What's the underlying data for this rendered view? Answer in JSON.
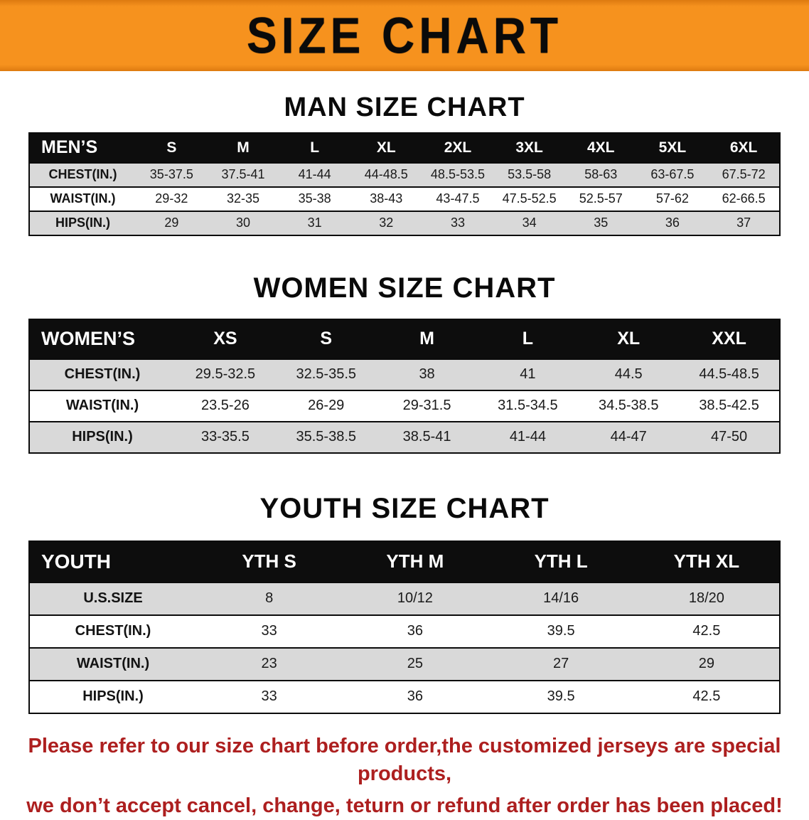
{
  "banner": {
    "title": "SIZE CHART"
  },
  "chart_data": [
    {
      "type": "table",
      "title": "MAN SIZE CHART",
      "columns": [
        "MEN’S",
        "S",
        "M",
        "L",
        "XL",
        "2XL",
        "3XL",
        "4XL",
        "5XL",
        "6XL"
      ],
      "rows": [
        [
          "CHEST(IN.)",
          "35-37.5",
          "37.5-41",
          "41-44",
          "44-48.5",
          "48.5-53.5",
          "53.5-58",
          "58-63",
          "63-67.5",
          "67.5-72"
        ],
        [
          "WAIST(IN.)",
          "29-32",
          "32-35",
          "35-38",
          "38-43",
          "43-47.5",
          "47.5-52.5",
          "52.5-57",
          "57-62",
          "62-66.5"
        ],
        [
          "HIPS(IN.)",
          "29",
          "30",
          "31",
          "32",
          "33",
          "34",
          "35",
          "36",
          "37"
        ]
      ]
    },
    {
      "type": "table",
      "title": "WOMEN SIZE CHART",
      "columns": [
        "WOMEN’S",
        "XS",
        "S",
        "M",
        "L",
        "XL",
        "XXL"
      ],
      "rows": [
        [
          "CHEST(IN.)",
          "29.5-32.5",
          "32.5-35.5",
          "38",
          "41",
          "44.5",
          "44.5-48.5"
        ],
        [
          "WAIST(IN.)",
          "23.5-26",
          "26-29",
          "29-31.5",
          "31.5-34.5",
          "34.5-38.5",
          "38.5-42.5"
        ],
        [
          "HIPS(IN.)",
          "33-35.5",
          "35.5-38.5",
          "38.5-41",
          "41-44",
          "44-47",
          "47-50"
        ]
      ]
    },
    {
      "type": "table",
      "title": "YOUTH SIZE CHART",
      "columns": [
        "YOUTH",
        "YTH S",
        "YTH M",
        "YTH L",
        "YTH XL"
      ],
      "rows": [
        [
          "U.S.SIZE",
          "8",
          "10/12",
          "14/16",
          "18/20"
        ],
        [
          "CHEST(IN.)",
          "33",
          "36",
          "39.5",
          "42.5"
        ],
        [
          "WAIST(IN.)",
          "23",
          "25",
          "27",
          "29"
        ],
        [
          "HIPS(IN.)",
          "33",
          "36",
          "39.5",
          "42.5"
        ]
      ]
    }
  ],
  "footer": {
    "lines": [
      "Please refer to our size chart before order,the customized jerseys are special products,",
      "we don’t accept cancel, change, teturn or refund after order has been placed!"
    ]
  },
  "colors": {
    "banner_orange": "#F6921E",
    "banner_orange_dark": "#DD7A10",
    "header_bg": "#0D0D0D",
    "header_text": "#FFFFFF",
    "row_shaded": "#D9D9D9",
    "row_plain": "#FFFFFF",
    "notice_red": "#AD1F1F"
  }
}
